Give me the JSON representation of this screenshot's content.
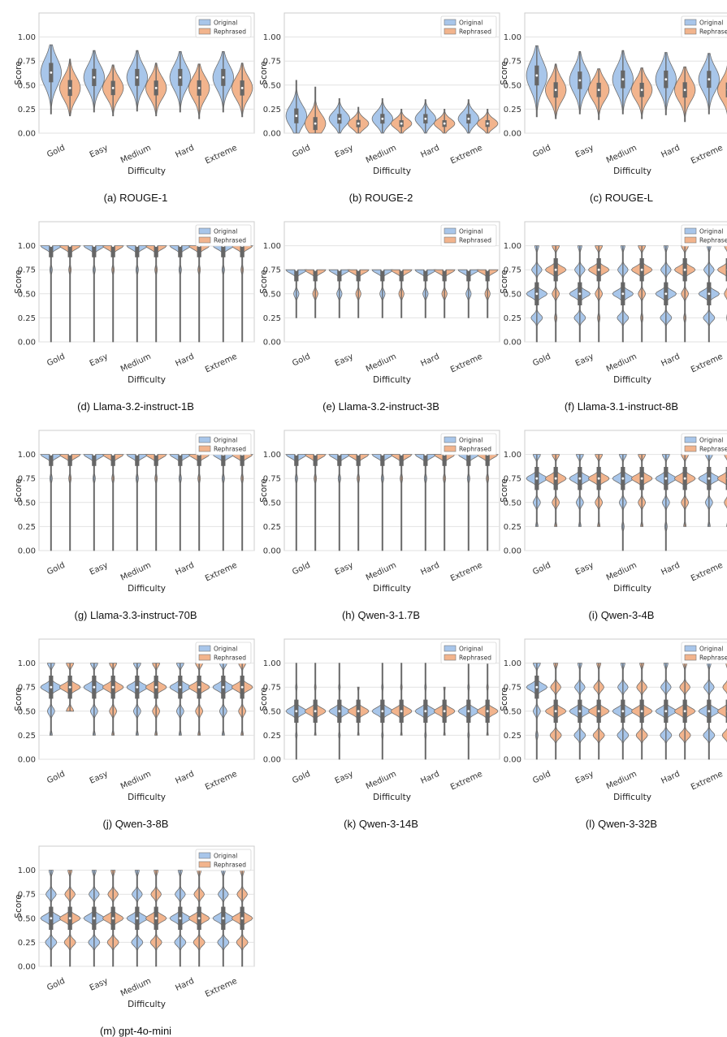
{
  "figure": {
    "captions": [
      "(a) ROUGE-1",
      "(b) ROUGE-2",
      "(c) ROUGE-L",
      "(d) Llama-3.2-instruct-1B",
      "(e) Llama-3.2-instruct-3B",
      "(f) Llama-3.1-instruct-8B",
      "(g) Llama-3.3-instruct-70B",
      "(h) Qwen-3-1.7B",
      "(i) Qwen-3-4B",
      "(j) Qwen-3-8B",
      "(k) Qwen-3-14B",
      "(l) Qwen-3-32B",
      "(m) gpt-4o-mini"
    ]
  },
  "colors": {
    "original": "#a8c6ea",
    "rephrased": "#f2b48d",
    "box": "#666666"
  },
  "chart_data": [
    {
      "type": "violin",
      "title": "(a) ROUGE-1",
      "xlabel": "Difficulty",
      "ylabel": "Score",
      "ylim": [
        0,
        1
      ],
      "categories": [
        "Gold",
        "Easy",
        "Medium",
        "Hard",
        "Extreme"
      ],
      "legend": {
        "position": "top-right",
        "entries": [
          "Original",
          "Rephrased"
        ]
      },
      "series": [
        {
          "name": "Original",
          "medians": [
            0.63,
            0.58,
            0.58,
            0.58,
            0.58
          ],
          "min": [
            0.2,
            0.22,
            0.23,
            0.22,
            0.22
          ],
          "max": [
            0.92,
            0.86,
            0.86,
            0.85,
            0.85
          ]
        },
        {
          "name": "Rephrased",
          "medians": [
            0.47,
            0.47,
            0.47,
            0.47,
            0.47
          ],
          "min": [
            0.18,
            0.18,
            0.18,
            0.15,
            0.17
          ],
          "max": [
            0.77,
            0.71,
            0.73,
            0.72,
            0.73
          ]
        }
      ]
    },
    {
      "type": "violin",
      "title": "(b) ROUGE-2",
      "xlabel": "Difficulty",
      "ylabel": "Score",
      "ylim": [
        0,
        1
      ],
      "categories": [
        "Gold",
        "Easy",
        "Medium",
        "Hard",
        "Extreme"
      ],
      "legend": {
        "position": "top-right",
        "entries": [
          "Original",
          "Rephrased"
        ]
      },
      "series": [
        {
          "name": "Original",
          "medians": [
            0.18,
            0.15,
            0.15,
            0.15,
            0.15
          ],
          "min": [
            0,
            0,
            0,
            0,
            0
          ],
          "max": [
            0.55,
            0.36,
            0.36,
            0.35,
            0.35
          ]
        },
        {
          "name": "Rephrased",
          "medians": [
            0.1,
            0.1,
            0.1,
            0.1,
            0.1
          ],
          "min": [
            0,
            0,
            0,
            0,
            0
          ],
          "max": [
            0.48,
            0.27,
            0.25,
            0.25,
            0.25
          ]
        }
      ]
    },
    {
      "type": "violin",
      "title": "(c) ROUGE-L",
      "xlabel": "Difficulty",
      "ylabel": "Score",
      "ylim": [
        0,
        1
      ],
      "categories": [
        "Gold",
        "Easy",
        "Medium",
        "Hard",
        "Extreme"
      ],
      "legend": {
        "position": "top-right",
        "entries": [
          "Original",
          "Rephrased"
        ]
      },
      "series": [
        {
          "name": "Original",
          "medians": [
            0.6,
            0.55,
            0.56,
            0.56,
            0.56
          ],
          "min": [
            0.17,
            0.2,
            0.2,
            0.19,
            0.2
          ],
          "max": [
            0.91,
            0.85,
            0.86,
            0.84,
            0.83
          ]
        },
        {
          "name": "Rephrased",
          "medians": [
            0.45,
            0.45,
            0.45,
            0.45,
            0.45
          ],
          "min": [
            0.15,
            0.14,
            0.15,
            0.12,
            0.15
          ],
          "max": [
            0.72,
            0.67,
            0.68,
            0.69,
            0.7
          ]
        }
      ]
    },
    {
      "type": "violin",
      "title": "(d) Llama-3.2-instruct-1B",
      "xlabel": "Difficulty",
      "ylabel": "Score",
      "ylim": [
        0,
        1
      ],
      "categories": [
        "Gold",
        "Easy",
        "Medium",
        "Hard",
        "Extreme"
      ],
      "legend": {
        "position": "top-right",
        "entries": [
          "Original",
          "Rephrased"
        ]
      },
      "series": [
        {
          "name": "Original",
          "medians": [
            1,
            1,
            1,
            1,
            1
          ],
          "min": [
            0,
            0,
            0,
            0,
            0
          ],
          "max": [
            1,
            1,
            1,
            1,
            1
          ]
        },
        {
          "name": "Rephrased",
          "medians": [
            1,
            1,
            1,
            1,
            1
          ],
          "min": [
            0,
            0,
            0,
            0,
            0
          ],
          "max": [
            1,
            1,
            1,
            1,
            1
          ]
        }
      ]
    },
    {
      "type": "violin",
      "title": "(e) Llama-3.2-instruct-3B",
      "xlabel": "Difficulty",
      "ylabel": "Score",
      "ylim": [
        0,
        1
      ],
      "categories": [
        "Gold",
        "Easy",
        "Medium",
        "Hard",
        "Extreme"
      ],
      "legend": {
        "position": "top-right",
        "entries": [
          "Original",
          "Rephrased"
        ]
      },
      "series": [
        {
          "name": "Original",
          "medians": [
            0.75,
            0.75,
            0.75,
            0.75,
            0.75
          ],
          "min": [
            0.25,
            0.25,
            0.25,
            0.25,
            0.25
          ],
          "max": [
            0.75,
            0.75,
            0.75,
            0.75,
            0.75
          ]
        },
        {
          "name": "Rephrased",
          "medians": [
            0.75,
            0.75,
            0.75,
            0.75,
            0.75
          ],
          "min": [
            0.25,
            0.25,
            0.25,
            0.25,
            0.25
          ],
          "max": [
            0.75,
            0.75,
            0.75,
            0.75,
            0.75
          ]
        }
      ]
    },
    {
      "type": "violin",
      "title": "(f) Llama-3.1-instruct-8B",
      "xlabel": "Difficulty",
      "ylabel": "Score",
      "ylim": [
        0,
        1
      ],
      "categories": [
        "Gold",
        "Easy",
        "Medium",
        "Hard",
        "Extreme"
      ],
      "legend": {
        "position": "top-right",
        "entries": [
          "Original",
          "Rephrased"
        ]
      },
      "series": [
        {
          "name": "Original",
          "medians": [
            0.5,
            0.5,
            0.5,
            0.5,
            0.5
          ],
          "min": [
            0,
            0,
            0,
            0,
            0
          ],
          "max": [
            1,
            1,
            1,
            1,
            1
          ]
        },
        {
          "name": "Rephrased",
          "medians": [
            0.75,
            0.75,
            0.75,
            0.75,
            0.75
          ],
          "min": [
            0,
            0,
            0,
            0,
            0
          ],
          "max": [
            1,
            1,
            1,
            1,
            1
          ]
        }
      ]
    },
    {
      "type": "violin",
      "title": "(g) Llama-3.3-instruct-70B",
      "xlabel": "Difficulty",
      "ylabel": "Score",
      "ylim": [
        0,
        1
      ],
      "categories": [
        "Gold",
        "Easy",
        "Medium",
        "Hard",
        "Extreme"
      ],
      "legend": {
        "position": "top-right",
        "entries": [
          "Original",
          "Rephrased"
        ]
      },
      "series": [
        {
          "name": "Original",
          "medians": [
            1,
            1,
            1,
            1,
            1
          ],
          "min": [
            0,
            0,
            0,
            0,
            0
          ],
          "max": [
            1,
            1,
            1,
            1,
            1
          ]
        },
        {
          "name": "Rephrased",
          "medians": [
            1,
            1,
            1,
            1,
            1
          ],
          "min": [
            0,
            0,
            0,
            0,
            0
          ],
          "max": [
            1,
            1,
            1,
            1,
            1
          ]
        }
      ]
    },
    {
      "type": "violin",
      "title": "(h) Qwen-3-1.7B",
      "xlabel": "Difficulty",
      "ylabel": "Score",
      "ylim": [
        0,
        1
      ],
      "categories": [
        "Gold",
        "Easy",
        "Medium",
        "Hard",
        "Extreme"
      ],
      "legend": {
        "position": "top-right",
        "entries": [
          "Original",
          "Rephrased"
        ]
      },
      "series": [
        {
          "name": "Original",
          "medians": [
            1,
            1,
            1,
            1,
            1
          ],
          "min": [
            0,
            0,
            0,
            0,
            0
          ],
          "max": [
            1,
            1,
            1,
            1,
            1
          ]
        },
        {
          "name": "Rephrased",
          "medians": [
            1,
            1,
            1,
            1,
            1
          ],
          "min": [
            0,
            0,
            0,
            0,
            0
          ],
          "max": [
            1,
            1,
            1,
            1,
            1
          ]
        }
      ]
    },
    {
      "type": "violin",
      "title": "(i) Qwen-3-4B",
      "xlabel": "Difficulty",
      "ylabel": "Score",
      "ylim": [
        0,
        1
      ],
      "categories": [
        "Gold",
        "Easy",
        "Medium",
        "Hard",
        "Extreme"
      ],
      "legend": {
        "position": "top-right",
        "entries": [
          "Original",
          "Rephrased"
        ]
      },
      "series": [
        {
          "name": "Original",
          "medians": [
            0.75,
            0.75,
            0.75,
            0.75,
            0.75
          ],
          "min": [
            0.25,
            0.25,
            0,
            0,
            0.25
          ],
          "max": [
            1,
            1,
            1,
            1,
            1
          ]
        },
        {
          "name": "Rephrased",
          "medians": [
            0.75,
            0.75,
            0.75,
            0.75,
            0.75
          ],
          "min": [
            0.25,
            0.25,
            0.25,
            0.25,
            0.25
          ],
          "max": [
            1,
            1,
            1,
            1,
            1
          ]
        }
      ]
    },
    {
      "type": "violin",
      "title": "(j) Qwen-3-8B",
      "xlabel": "Difficulty",
      "ylabel": "Score",
      "ylim": [
        0,
        1
      ],
      "categories": [
        "Gold",
        "Easy",
        "Medium",
        "Hard",
        "Extreme"
      ],
      "legend": {
        "position": "top-right",
        "entries": [
          "Original",
          "Rephrased"
        ]
      },
      "series": [
        {
          "name": "Original",
          "medians": [
            0.75,
            0.75,
            0.75,
            0.75,
            0.75
          ],
          "min": [
            0.25,
            0.25,
            0.25,
            0.25,
            0.25
          ],
          "max": [
            1,
            1,
            1,
            1,
            1
          ]
        },
        {
          "name": "Rephrased",
          "medians": [
            0.75,
            0.75,
            0.75,
            0.75,
            0.75
          ],
          "min": [
            0.5,
            0.25,
            0.25,
            0.25,
            0.25
          ],
          "max": [
            1,
            1,
            1,
            1,
            1
          ]
        }
      ]
    },
    {
      "type": "violin",
      "title": "(k) Qwen-3-14B",
      "xlabel": "Difficulty",
      "ylabel": "Score",
      "ylim": [
        0,
        1
      ],
      "categories": [
        "Gold",
        "Easy",
        "Medium",
        "Hard",
        "Extreme"
      ],
      "legend": {
        "position": "top-right",
        "entries": [
          "Original",
          "Rephrased"
        ]
      },
      "series": [
        {
          "name": "Original",
          "medians": [
            0.5,
            0.5,
            0.5,
            0.5,
            0.5
          ],
          "min": [
            0,
            0,
            0,
            0,
            0
          ],
          "max": [
            1,
            1,
            1,
            1,
            1
          ]
        },
        {
          "name": "Rephrased",
          "medians": [
            0.5,
            0.5,
            0.5,
            0.5,
            0.5
          ],
          "min": [
            0.25,
            0.25,
            0.25,
            0.25,
            0.25
          ],
          "max": [
            1,
            0.75,
            1,
            0.75,
            1
          ]
        }
      ]
    },
    {
      "type": "violin",
      "title": "(l) Qwen-3-32B",
      "xlabel": "Difficulty",
      "ylabel": "Score",
      "ylim": [
        0,
        1
      ],
      "categories": [
        "Gold",
        "Easy",
        "Medium",
        "Hard",
        "Extreme"
      ],
      "legend": {
        "position": "top-right",
        "entries": [
          "Original",
          "Rephrased"
        ]
      },
      "series": [
        {
          "name": "Original",
          "medians": [
            0.75,
            0.5,
            0.5,
            0.5,
            0.5
          ],
          "min": [
            0,
            0,
            0,
            0,
            0
          ],
          "max": [
            1,
            1,
            1,
            1,
            1
          ]
        },
        {
          "name": "Rephrased",
          "medians": [
            0.5,
            0.5,
            0.5,
            0.5,
            0.5
          ],
          "min": [
            0,
            0,
            0,
            0,
            0
          ],
          "max": [
            1,
            1,
            1,
            1,
            1
          ]
        }
      ]
    },
    {
      "type": "violin",
      "title": "(m) gpt-4o-mini",
      "xlabel": "Difficulty",
      "ylabel": "Score",
      "ylim": [
        0,
        1
      ],
      "categories": [
        "Gold",
        "Easy",
        "Medium",
        "Hard",
        "Extreme"
      ],
      "legend": {
        "position": "top-right",
        "entries": [
          "Original",
          "Rephrased"
        ]
      },
      "series": [
        {
          "name": "Original",
          "medians": [
            0.5,
            0.5,
            0.5,
            0.5,
            0.5
          ],
          "min": [
            0,
            0,
            0,
            0,
            0
          ],
          "max": [
            1,
            1,
            1,
            1,
            1
          ]
        },
        {
          "name": "Rephrased",
          "medians": [
            0.5,
            0.5,
            0.5,
            0.5,
            0.5
          ],
          "min": [
            0,
            0,
            0,
            0,
            0
          ],
          "max": [
            1,
            1,
            1,
            1,
            1
          ]
        }
      ]
    }
  ]
}
